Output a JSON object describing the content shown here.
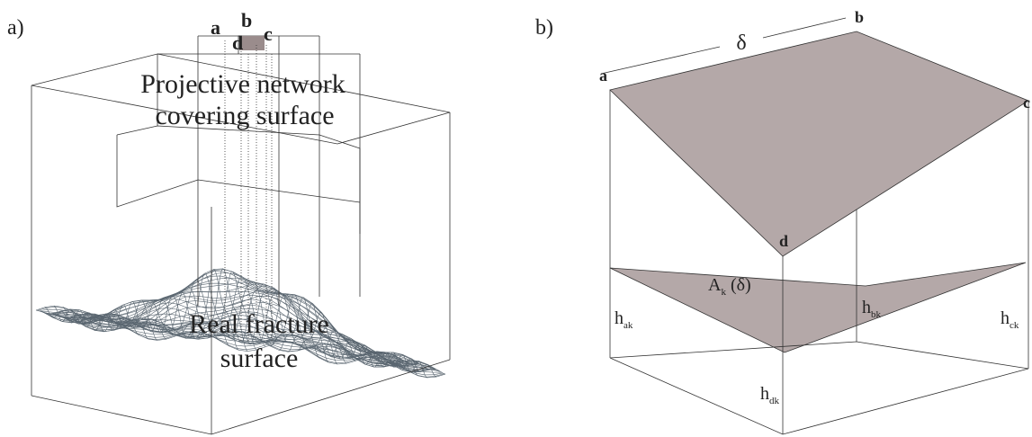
{
  "panel_a": {
    "tag": "a)",
    "corners": [
      "a",
      "b",
      "c",
      "d"
    ],
    "top_label": [
      "Projective network",
      "covering surface"
    ],
    "surface_label": [
      "Real fracture",
      "surface"
    ]
  },
  "panel_b": {
    "tag": "b)",
    "delta": "δ",
    "corners": [
      "a",
      "b",
      "c",
      "d"
    ],
    "heights": [
      {
        "main": "h",
        "sub": "bk"
      },
      {
        "main": "h",
        "sub": "ak"
      },
      {
        "main": "h",
        "sub": "ck"
      },
      {
        "main": "h",
        "sub": "dk"
      }
    ],
    "area": {
      "main": "A",
      "sub": "k",
      "rest": " (δ)"
    }
  }
}
